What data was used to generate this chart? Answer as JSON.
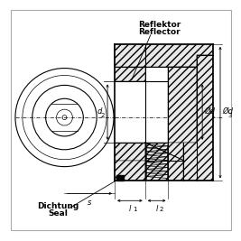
{
  "bg_color": "#ffffff",
  "line_color": "#000000",
  "label_fontsize": 6.0,
  "texts": {
    "reflektor": "Reflektor",
    "reflector": "Reflector",
    "dichtung": "Dichtung",
    "seal": "Seal",
    "d2": "d",
    "d2_sub": "2",
    "s": "s",
    "d1": "Ød",
    "d1_sub": "1",
    "d3": "Ød",
    "d3_sub": "3",
    "l1": "l",
    "l1_sub": "1",
    "l2": "l",
    "l2_sub": "2"
  }
}
